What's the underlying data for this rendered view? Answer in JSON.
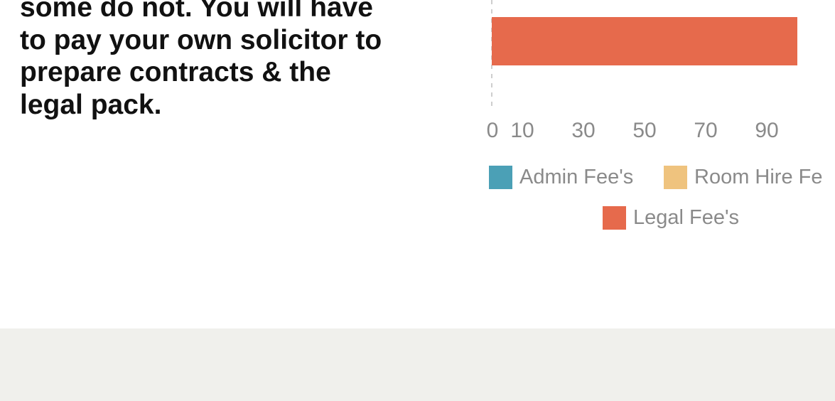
{
  "intro": {
    "lines": [
      "some do not. You will have",
      "to pay your own solicitor to",
      "prepare contracts & the",
      "legal pack."
    ]
  },
  "chart_data": {
    "type": "bar",
    "orientation": "horizontal",
    "x_ticks": [
      "0",
      "10",
      "30",
      "50",
      "70",
      "90"
    ],
    "xlim": [
      0,
      100
    ],
    "series": [
      {
        "name": "Admin Fee's",
        "color": "#4ba0b6"
      },
      {
        "name": "Room Hire Fe",
        "color": "#efc37e"
      },
      {
        "name": "Legal Fee's",
        "color": "#e66a4c",
        "values": [
          100
        ]
      }
    ],
    "grid": false,
    "legend_position": "bottom"
  }
}
